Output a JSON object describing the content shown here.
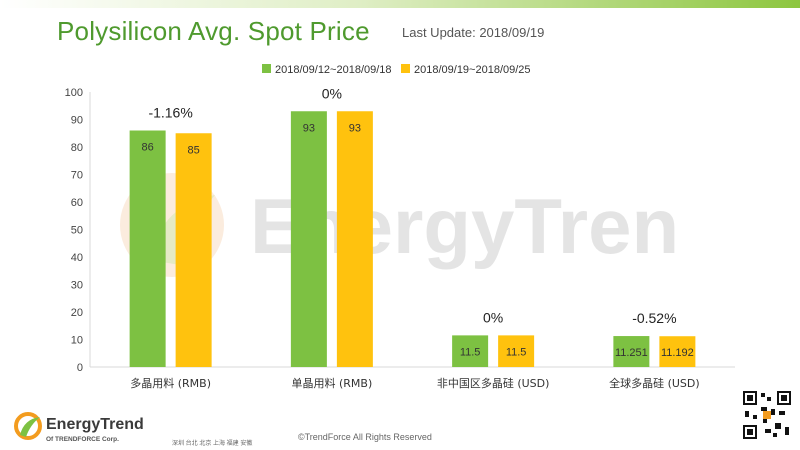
{
  "header": {
    "title": "Polysilicon Avg. Spot Price",
    "last_update": "Last Update: 2018/09/19"
  },
  "colors": {
    "series1": "#7dc142",
    "series2": "#ffc20e",
    "title": "#4f9a2e",
    "axis_text": "#444444",
    "gridline": "#d9d9d9"
  },
  "chart_data": {
    "type": "bar",
    "title": "Polysilicon Avg. Spot Price",
    "categories": [
      "多晶用料 (RMB)",
      "单晶用料 (RMB)",
      "非中国区多晶硅 (USD)",
      "全球多晶硅 (USD)"
    ],
    "series": [
      {
        "name": "2018/09/12~2018/09/18",
        "values": [
          86,
          93,
          11.5,
          11.251
        ],
        "labels": [
          "86",
          "93",
          "11.5",
          "11.251"
        ]
      },
      {
        "name": "2018/09/19~2018/09/25",
        "values": [
          85,
          93,
          11.5,
          11.192
        ],
        "labels": [
          "85",
          "93",
          "11.5",
          "11.192"
        ]
      }
    ],
    "changes": [
      "-1.16%",
      "0%",
      "0%",
      "-0.52%"
    ],
    "yticks": [
      "0",
      "10",
      "20",
      "30",
      "40",
      "50",
      "60",
      "70",
      "80",
      "90",
      "100"
    ],
    "ylim": [
      0,
      100
    ],
    "legend_position": "top-center",
    "grid": false
  },
  "footer": {
    "logo_text": "EnergyTrend",
    "logo_sub": "Of TRENDFORCE Corp.",
    "cities": "深圳  台北  北京  上海  福建  安徽",
    "copyright": "©TrendForce All Rights Reserved"
  },
  "watermark_text": "EnergyTrend"
}
